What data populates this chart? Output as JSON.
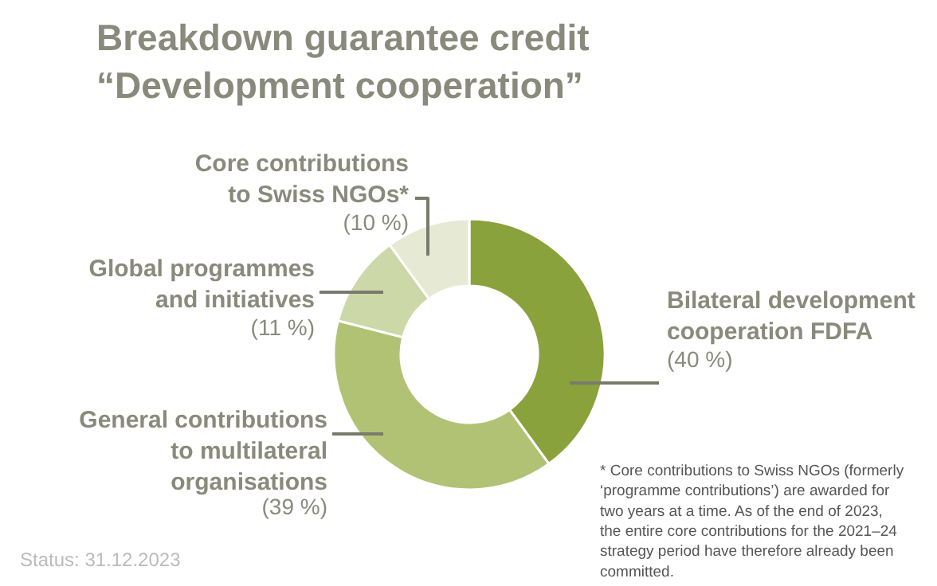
{
  "chart_data": {
    "type": "donut",
    "title": "Breakdown guarantee credit\n“Development cooperation”",
    "categories": [
      "Bilateral development\ncooperation FDFA",
      "General contributions\nto multilateral\norganisations",
      "Global programmes\nand initiatives",
      "Core contributions\nto Swiss NGOs*"
    ],
    "values": [
      40,
      39,
      11,
      10
    ],
    "colors": [
      "#8aa23c",
      "#b2c274",
      "#ccd8a8",
      "#e6ead5"
    ],
    "value_labels": [
      "(40 %)",
      "(39 %)",
      "(11 %)",
      "(10 %)"
    ],
    "annotations": [
      "* Core contributions to Swiss NGOs (formerly\n‘programme contributions’) are awarded for\ntwo years at a time. As of the end of 2023,\nthe entire core contributions for the 2021–24\nstrategy period have therefore already been\ncommitted.",
      "Status: 31.12.2023"
    ]
  }
}
